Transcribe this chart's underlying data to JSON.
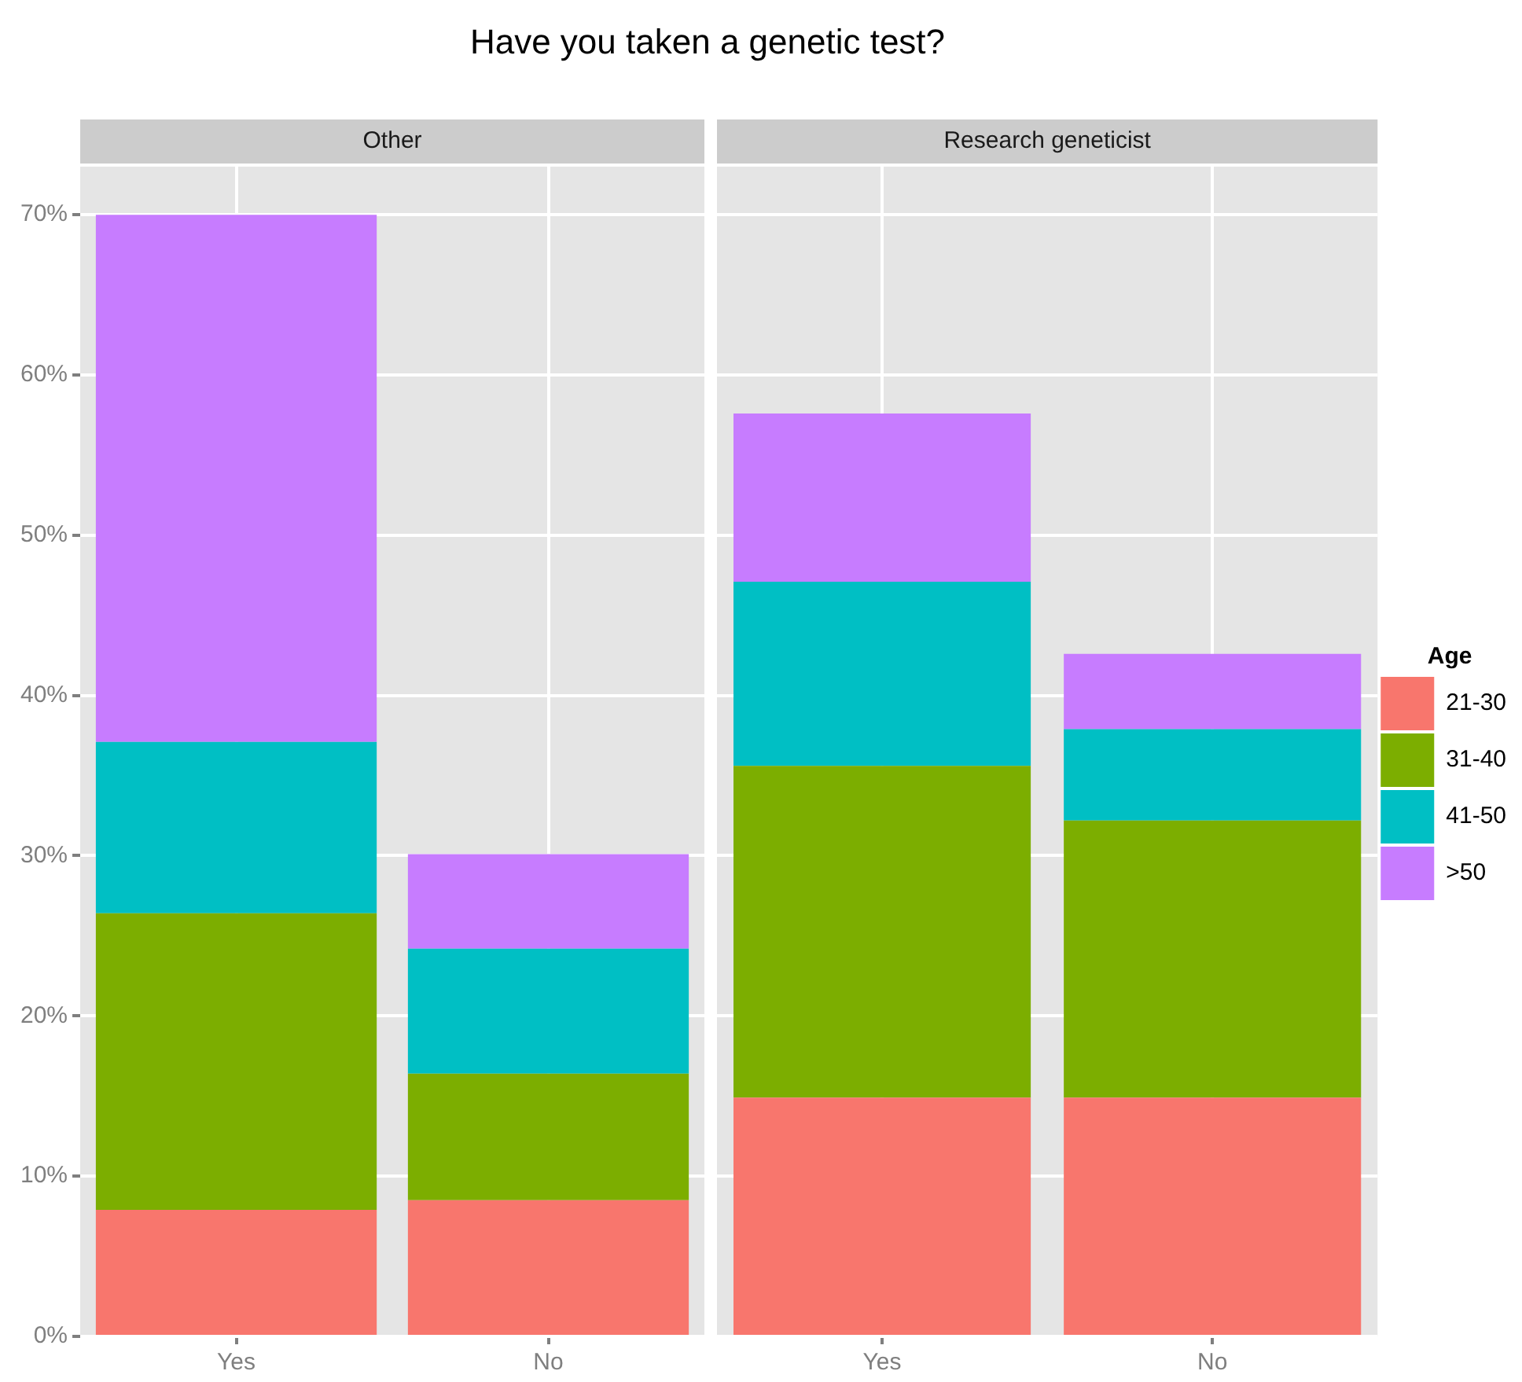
{
  "chart_data": [
    {
      "type": "bar",
      "title": "Have you taken a genetic test?",
      "subtitle": "Other",
      "categories": [
        "Yes",
        "No"
      ],
      "stacked": true,
      "grid": true,
      "legend": false,
      "ylim": [
        0,
        73
      ],
      "yticks": [
        {
          "value": 0,
          "label": "0%"
        },
        {
          "value": 10,
          "label": "10%"
        },
        {
          "value": 20,
          "label": "20%"
        },
        {
          "value": 30,
          "label": "30%"
        },
        {
          "value": 40,
          "label": "40%"
        },
        {
          "value": 50,
          "label": "50%"
        },
        {
          "value": 60,
          "label": "60%"
        },
        {
          "value": 70,
          "label": "70%"
        }
      ],
      "series": [
        {
          "color": "#f8766d",
          "values": [
            7.9,
            8.5
          ]
        },
        {
          "color": "#7cae00",
          "values": [
            18.5,
            7.9
          ]
        },
        {
          "color": "#00bfc4",
          "values": [
            10.7,
            7.8
          ]
        },
        {
          "color": "#c77cff",
          "values": [
            32.9,
            5.9
          ]
        }
      ]
    },
    {
      "type": "bar",
      "subtitle": "Research geneticist",
      "categories": [
        "Yes",
        "No"
      ],
      "stacked": true,
      "grid": true,
      "legend": "right",
      "legend_title": "Age",
      "tick_labels": "x",
      "ylim": [
        0,
        73
      ],
      "yticks": [
        0,
        10,
        20,
        30,
        40,
        50,
        60,
        70
      ],
      "series": [
        {
          "name": "21-30",
          "color": "#f8766d",
          "values": [
            14.9,
            14.9
          ]
        },
        {
          "name": "31-40",
          "color": "#7cae00",
          "values": [
            20.7,
            17.3
          ]
        },
        {
          "name": "41-50",
          "color": "#00bfc4",
          "values": [
            11.5,
            5.7
          ]
        },
        {
          "name": ">50",
          "color": "#c77cff",
          "values": [
            10.5,
            4.7
          ]
        }
      ]
    }
  ]
}
